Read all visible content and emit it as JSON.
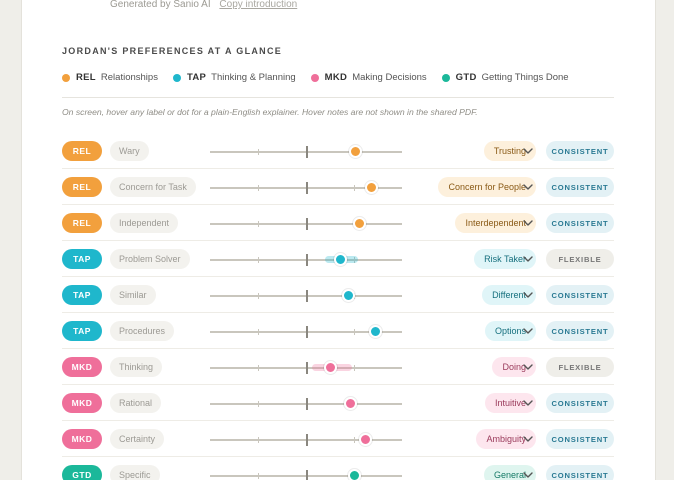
{
  "header": {
    "generated_text": "Generated by Sanio AI",
    "copy_link": "Copy introduction"
  },
  "section_title": "JORDAN'S PREFERENCES AT A GLANCE",
  "legend": [
    {
      "code": "REL",
      "name": "Relationships",
      "color": "#f2a03d"
    },
    {
      "code": "TAP",
      "name": "Thinking & Planning",
      "color": "#1fb7cc"
    },
    {
      "code": "MKD",
      "name": "Making Decisions",
      "color": "#ef6f9a"
    },
    {
      "code": "GTD",
      "name": "Getting Things Done",
      "color": "#1bb89a"
    }
  ],
  "hint": "On screen, hover any label or dot for a plain-English explainer. Hover notes are not shown in the shared PDF.",
  "colors": {
    "REL": {
      "main": "#f2a03d",
      "soft": "#fdf0dc",
      "text": "#8a5a16"
    },
    "TAP": {
      "main": "#1fb7cc",
      "soft": "#e0f5f8",
      "text": "#16707e"
    },
    "MKD": {
      "main": "#ef6f9a",
      "soft": "#fde6ee",
      "text": "#9a3a5b"
    },
    "GTD": {
      "main": "#1bb89a",
      "soft": "#dff5ef",
      "text": "#157a66"
    }
  },
  "rows": [
    {
      "code": "REL",
      "left": "Wary",
      "right": "Trusting",
      "value": 0.76,
      "status": "CONSISTENT"
    },
    {
      "code": "REL",
      "left": "Concern for Task",
      "right": "Concern for People",
      "value": 0.84,
      "status": "CONSISTENT"
    },
    {
      "code": "REL",
      "left": "Independent",
      "right": "Interdependent",
      "value": 0.78,
      "status": "CONSISTENT"
    },
    {
      "code": "TAP",
      "left": "Problem Solver",
      "right": "Risk Taker",
      "value": 0.68,
      "status": "FLEXIBLE",
      "range": [
        0.6,
        0.77
      ]
    },
    {
      "code": "TAP",
      "left": "Similar",
      "right": "Different",
      "value": 0.72,
      "status": "CONSISTENT"
    },
    {
      "code": "TAP",
      "left": "Procedures",
      "right": "Options",
      "value": 0.86,
      "status": "CONSISTENT"
    },
    {
      "code": "MKD",
      "left": "Thinking",
      "right": "Doing",
      "value": 0.63,
      "status": "FLEXIBLE",
      "range": [
        0.53,
        0.74
      ]
    },
    {
      "code": "MKD",
      "left": "Rational",
      "right": "Intuitive",
      "value": 0.73,
      "status": "CONSISTENT"
    },
    {
      "code": "MKD",
      "left": "Certainty",
      "right": "Ambiguity",
      "value": 0.81,
      "status": "CONSISTENT"
    },
    {
      "code": "GTD",
      "left": "Specific",
      "right": "General",
      "value": 0.75,
      "status": "CONSISTENT"
    }
  ]
}
